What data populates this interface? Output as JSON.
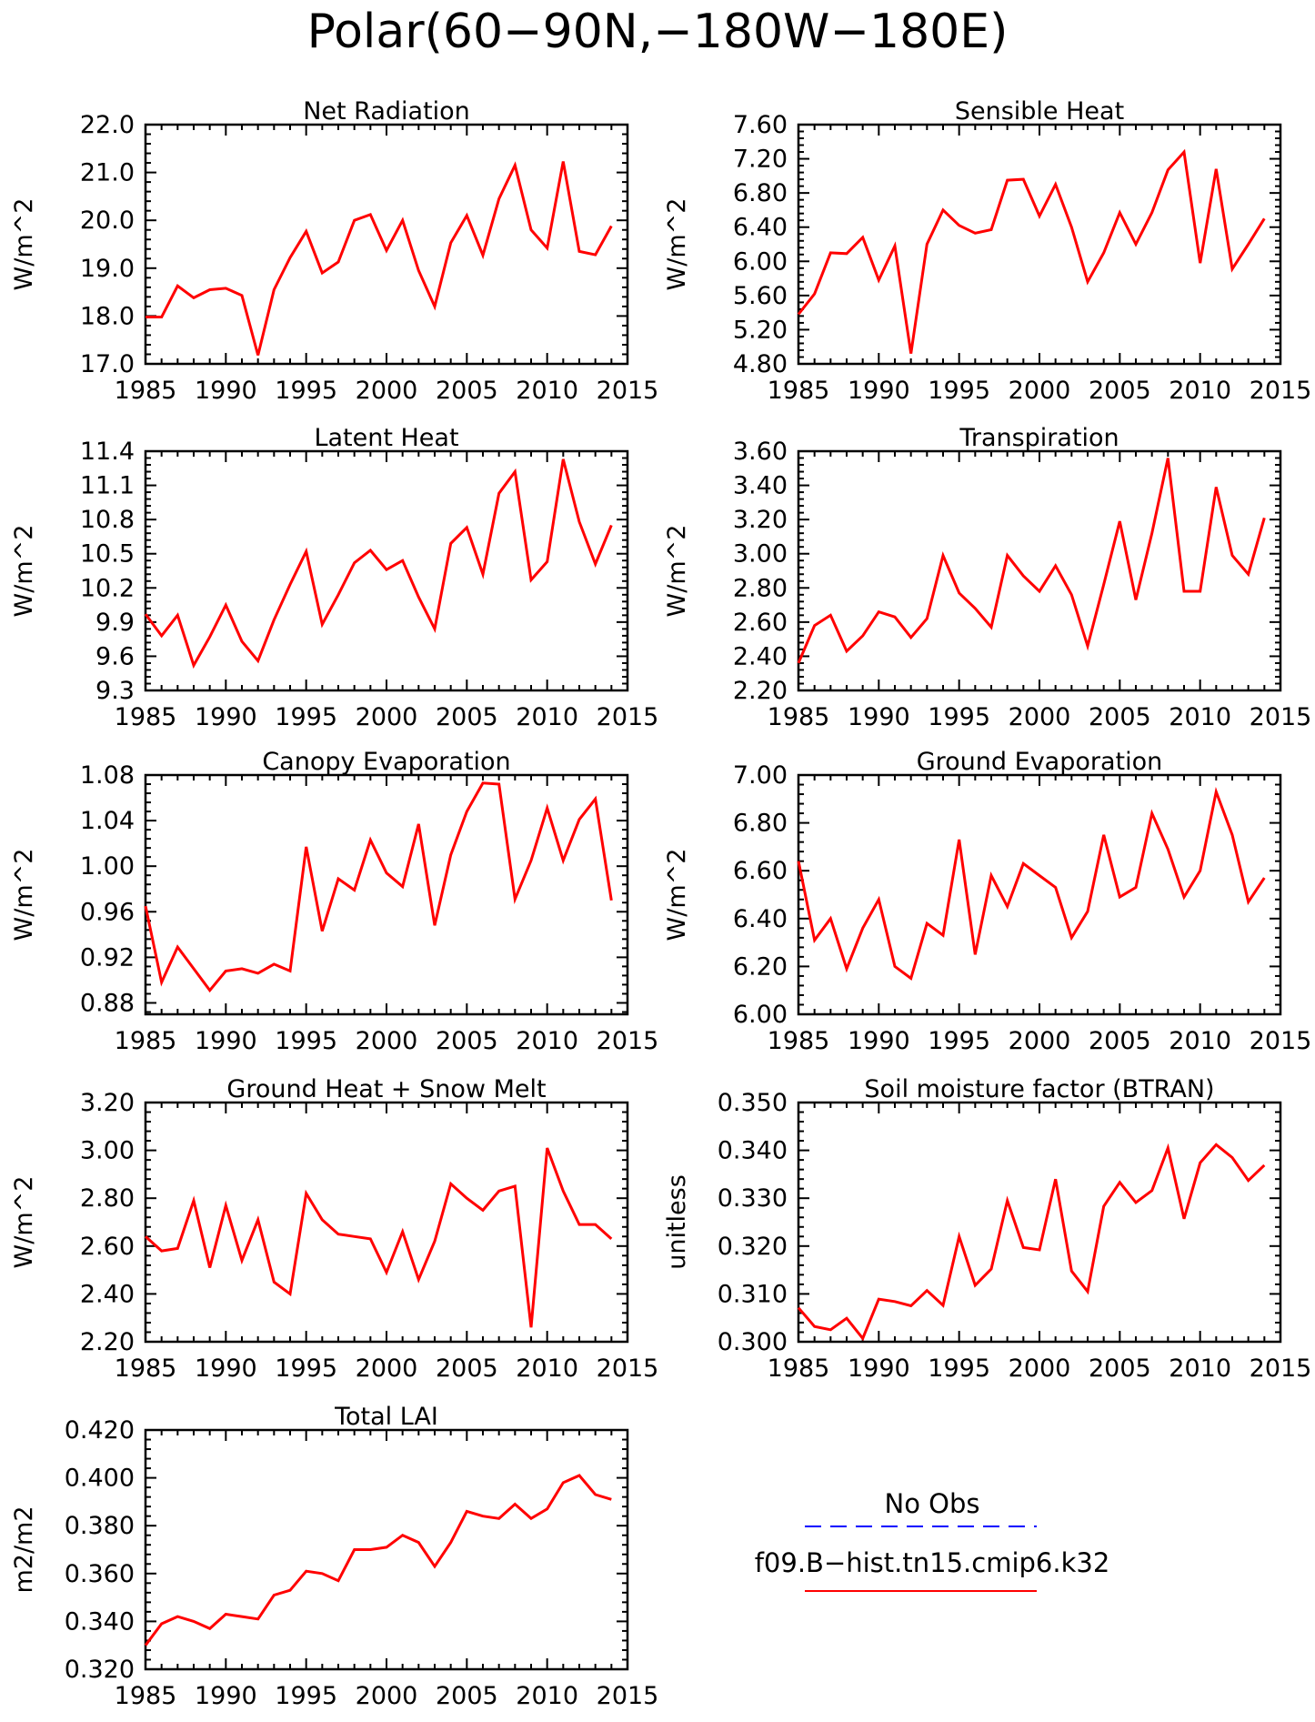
{
  "figure_title": "Polar(60−90N,−180W−180E)",
  "colors": {
    "model_line": "#ff0000",
    "obs_line": "#0000ff"
  },
  "legend": {
    "obs_label": "No Obs",
    "model_label": "f09.B−hist.tn15.cmip6.k32"
  },
  "chart_data": [
    {
      "type": "line",
      "title": "Net Radiation",
      "ylabel": "W/m^2",
      "xlim": [
        1985,
        2015
      ],
      "ylim": [
        17.0,
        22.0
      ],
      "xticks": [
        "1985",
        "1990",
        "1995",
        "2000",
        "2005",
        "2010",
        "2015"
      ],
      "yticks": [
        "17.0",
        "18.0",
        "19.0",
        "20.0",
        "21.0",
        "22.0"
      ],
      "x": [
        1985,
        1986,
        1987,
        1988,
        1989,
        1990,
        1991,
        1992,
        1993,
        1994,
        1995,
        1996,
        1997,
        1998,
        1999,
        2000,
        2001,
        2002,
        2003,
        2004,
        2005,
        2006,
        2007,
        2008,
        2009,
        2010,
        2011,
        2012,
        2013,
        2014
      ],
      "series": [
        {
          "values": [
            17.98,
            17.98,
            18.63,
            18.38,
            18.55,
            18.58,
            18.43,
            17.18,
            18.55,
            19.22,
            19.77,
            18.9,
            19.13,
            20.0,
            20.12,
            19.37,
            20.0,
            18.95,
            18.2,
            19.53,
            20.1,
            19.27,
            20.45,
            21.15,
            19.8,
            19.42,
            21.23,
            19.35,
            19.28,
            19.88
          ]
        }
      ]
    },
    {
      "type": "line",
      "title": "Sensible Heat",
      "ylabel": "W/m^2",
      "xlim": [
        1985,
        2015
      ],
      "ylim": [
        4.8,
        7.6
      ],
      "xticks": [
        "1985",
        "1990",
        "1995",
        "2000",
        "2005",
        "2010",
        "2015"
      ],
      "yticks": [
        "4.80",
        "5.20",
        "5.60",
        "6.00",
        "6.40",
        "6.80",
        "7.20",
        "7.60"
      ],
      "x": [
        1985,
        1986,
        1987,
        1988,
        1989,
        1990,
        1991,
        1992,
        1993,
        1994,
        1995,
        1996,
        1997,
        1998,
        1999,
        2000,
        2001,
        2002,
        2003,
        2004,
        2005,
        2006,
        2007,
        2008,
        2009,
        2010,
        2011,
        2012,
        2013,
        2014
      ],
      "series": [
        {
          "values": [
            5.38,
            5.62,
            6.1,
            6.09,
            6.28,
            5.78,
            6.18,
            4.92,
            6.2,
            6.6,
            6.42,
            6.33,
            6.37,
            6.95,
            6.96,
            6.53,
            6.9,
            6.4,
            5.76,
            6.1,
            6.57,
            6.2,
            6.57,
            7.07,
            7.28,
            5.98,
            7.08,
            5.91,
            6.2,
            6.5
          ]
        }
      ]
    },
    {
      "type": "line",
      "title": "Latent Heat",
      "ylabel": "W/m^2",
      "xlim": [
        1985,
        2015
      ],
      "ylim": [
        9.3,
        11.4
      ],
      "xticks": [
        "1985",
        "1990",
        "1995",
        "2000",
        "2005",
        "2010",
        "2015"
      ],
      "yticks": [
        "9.3",
        "9.6",
        "9.9",
        "10.2",
        "10.5",
        "10.8",
        "11.1",
        "11.4"
      ],
      "x": [
        1985,
        1986,
        1987,
        1988,
        1989,
        1990,
        1991,
        1992,
        1993,
        1994,
        1995,
        1996,
        1997,
        1998,
        1999,
        2000,
        2001,
        2002,
        2003,
        2004,
        2005,
        2006,
        2007,
        2008,
        2009,
        2010,
        2011,
        2012,
        2013,
        2014
      ],
      "series": [
        {
          "values": [
            9.97,
            9.78,
            9.96,
            9.52,
            9.77,
            10.05,
            9.73,
            9.56,
            9.92,
            10.23,
            10.52,
            9.88,
            10.14,
            10.42,
            10.53,
            10.36,
            10.44,
            10.12,
            9.84,
            10.59,
            10.73,
            10.32,
            11.03,
            11.22,
            10.27,
            10.43,
            11.33,
            10.78,
            10.41,
            10.75
          ]
        }
      ]
    },
    {
      "type": "line",
      "title": "Transpiration",
      "ylabel": "W/m^2",
      "xlim": [
        1985,
        2015
      ],
      "ylim": [
        2.2,
        3.6
      ],
      "xticks": [
        "1985",
        "1990",
        "1995",
        "2000",
        "2005",
        "2010",
        "2015"
      ],
      "yticks": [
        "2.20",
        "2.40",
        "2.60",
        "2.80",
        "3.00",
        "3.20",
        "3.40",
        "3.60"
      ],
      "x": [
        1985,
        1986,
        1987,
        1988,
        1989,
        1990,
        1991,
        1992,
        1993,
        1994,
        1995,
        1996,
        1997,
        1998,
        1999,
        2000,
        2001,
        2002,
        2003,
        2004,
        2005,
        2006,
        2007,
        2008,
        2009,
        2010,
        2011,
        2012,
        2013,
        2014
      ],
      "series": [
        {
          "values": [
            2.36,
            2.58,
            2.64,
            2.43,
            2.52,
            2.66,
            2.63,
            2.51,
            2.62,
            2.99,
            2.77,
            2.68,
            2.57,
            2.99,
            2.87,
            2.78,
            2.93,
            2.76,
            2.46,
            2.82,
            3.19,
            2.73,
            3.12,
            3.56,
            2.78,
            2.78,
            3.39,
            2.99,
            2.88,
            3.21
          ]
        }
      ]
    },
    {
      "type": "line",
      "title": "Canopy Evaporation",
      "ylabel": "W/m^2",
      "xlim": [
        1985,
        2015
      ],
      "ylim": [
        0.87,
        1.08
      ],
      "xticks": [
        "1985",
        "1990",
        "1995",
        "2000",
        "2005",
        "2010",
        "2015"
      ],
      "yticks": [
        "0.88",
        "0.92",
        "0.96",
        "1.00",
        "1.04",
        "1.08"
      ],
      "x": [
        1985,
        1986,
        1987,
        1988,
        1989,
        1990,
        1991,
        1992,
        1993,
        1994,
        1995,
        1996,
        1997,
        1998,
        1999,
        2000,
        2001,
        2002,
        2003,
        2004,
        2005,
        2006,
        2007,
        2008,
        2009,
        2010,
        2011,
        2012,
        2013,
        2014
      ],
      "series": [
        {
          "values": [
            0.965,
            0.898,
            0.929,
            0.91,
            0.891,
            0.908,
            0.91,
            0.906,
            0.914,
            0.908,
            1.017,
            0.943,
            0.989,
            0.979,
            1.023,
            0.994,
            0.982,
            1.037,
            0.948,
            1.01,
            1.048,
            1.073,
            1.072,
            0.971,
            1.005,
            1.051,
            1.005,
            1.041,
            1.059,
            0.97
          ]
        }
      ]
    },
    {
      "type": "line",
      "title": "Ground Evaporation",
      "ylabel": "W/m^2",
      "xlim": [
        1985,
        2015
      ],
      "ylim": [
        6.0,
        7.0
      ],
      "xticks": [
        "1985",
        "1990",
        "1995",
        "2000",
        "2005",
        "2010",
        "2015"
      ],
      "yticks": [
        "6.00",
        "6.20",
        "6.40",
        "6.60",
        "6.80",
        "7.00"
      ],
      "x": [
        1985,
        1986,
        1987,
        1988,
        1989,
        1990,
        1991,
        1992,
        1993,
        1994,
        1995,
        1996,
        1997,
        1998,
        1999,
        2000,
        2001,
        2002,
        2003,
        2004,
        2005,
        2006,
        2007,
        2008,
        2009,
        2010,
        2011,
        2012,
        2013,
        2014
      ],
      "series": [
        {
          "values": [
            6.64,
            6.31,
            6.4,
            6.19,
            6.36,
            6.48,
            6.2,
            6.15,
            6.38,
            6.33,
            6.73,
            6.25,
            6.58,
            6.45,
            6.63,
            6.58,
            6.53,
            6.32,
            6.43,
            6.75,
            6.49,
            6.53,
            6.84,
            6.69,
            6.49,
            6.6,
            6.93,
            6.75,
            6.47,
            6.57
          ]
        }
      ]
    },
    {
      "type": "line",
      "title": "Ground Heat + Snow Melt",
      "ylabel": "W/m^2",
      "xlim": [
        1985,
        2015
      ],
      "ylim": [
        2.2,
        3.2
      ],
      "xticks": [
        "1985",
        "1990",
        "1995",
        "2000",
        "2005",
        "2010",
        "2015"
      ],
      "yticks": [
        "2.20",
        "2.40",
        "2.60",
        "2.80",
        "3.00",
        "3.20"
      ],
      "x": [
        1985,
        1986,
        1987,
        1988,
        1989,
        1990,
        1991,
        1992,
        1993,
        1994,
        1995,
        1996,
        1997,
        1998,
        1999,
        2000,
        2001,
        2002,
        2003,
        2004,
        2005,
        2006,
        2007,
        2008,
        2009,
        2010,
        2011,
        2012,
        2013,
        2014
      ],
      "series": [
        {
          "values": [
            2.64,
            2.58,
            2.59,
            2.79,
            2.51,
            2.77,
            2.54,
            2.71,
            2.45,
            2.4,
            2.82,
            2.71,
            2.65,
            2.64,
            2.63,
            2.49,
            2.66,
            2.46,
            2.62,
            2.86,
            2.8,
            2.75,
            2.83,
            2.85,
            2.26,
            3.01,
            2.83,
            2.69,
            2.69,
            2.63
          ]
        }
      ]
    },
    {
      "type": "line",
      "title": "Soil moisture factor (BTRAN)",
      "ylabel": "unitless",
      "xlim": [
        1985,
        2015
      ],
      "ylim": [
        0.3,
        0.35
      ],
      "xticks": [
        "1985",
        "1990",
        "1995",
        "2000",
        "2005",
        "2010",
        "2015"
      ],
      "yticks": [
        "0.300",
        "0.310",
        "0.320",
        "0.330",
        "0.340",
        "0.350"
      ],
      "x": [
        1985,
        1986,
        1987,
        1988,
        1989,
        1990,
        1991,
        1992,
        1993,
        1994,
        1995,
        1996,
        1997,
        1998,
        1999,
        2000,
        2001,
        2002,
        2003,
        2004,
        2005,
        2006,
        2007,
        2008,
        2009,
        2010,
        2011,
        2012,
        2013,
        2014
      ],
      "series": [
        {
          "values": [
            0.3071,
            0.3032,
            0.3025,
            0.3049,
            0.3007,
            0.3089,
            0.3084,
            0.3075,
            0.3107,
            0.3076,
            0.322,
            0.3118,
            0.3152,
            0.3295,
            0.3197,
            0.3192,
            0.334,
            0.3148,
            0.3105,
            0.3283,
            0.3333,
            0.3291,
            0.3316,
            0.3405,
            0.3257,
            0.3374,
            0.3412,
            0.3385,
            0.3337,
            0.3369
          ]
        }
      ]
    },
    {
      "type": "line",
      "title": "Total LAI",
      "ylabel": "m2/m2",
      "xlim": [
        1985,
        2015
      ],
      "ylim": [
        0.32,
        0.42
      ],
      "xticks": [
        "1985",
        "1990",
        "1995",
        "2000",
        "2005",
        "2010",
        "2015"
      ],
      "yticks": [
        "0.320",
        "0.340",
        "0.360",
        "0.380",
        "0.400",
        "0.420"
      ],
      "x": [
        1985,
        1986,
        1987,
        1988,
        1989,
        1990,
        1991,
        1992,
        1993,
        1994,
        1995,
        1996,
        1997,
        1998,
        1999,
        2000,
        2001,
        2002,
        2003,
        2004,
        2005,
        2006,
        2007,
        2008,
        2009,
        2010,
        2011,
        2012,
        2013,
        2014
      ],
      "series": [
        {
          "values": [
            0.33,
            0.339,
            0.342,
            0.34,
            0.337,
            0.343,
            0.342,
            0.341,
            0.351,
            0.353,
            0.361,
            0.36,
            0.357,
            0.37,
            0.37,
            0.371,
            0.376,
            0.373,
            0.363,
            0.373,
            0.386,
            0.384,
            0.383,
            0.389,
            0.383,
            0.387,
            0.398,
            0.401,
            0.393,
            0.391
          ]
        }
      ]
    }
  ]
}
